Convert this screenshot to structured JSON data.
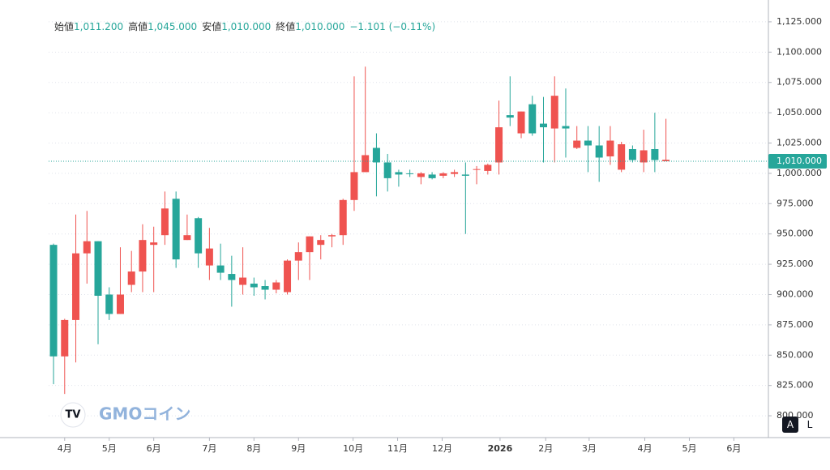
{
  "chart_data": {
    "type": "candlestick",
    "legend": [
      {
        "label": "始値",
        "value": "1,011.200"
      },
      {
        "label": "高値",
        "value": "1,045.000"
      },
      {
        "label": "安値",
        "value": "1,010.000"
      },
      {
        "label": "終値",
        "value": "1,010.000"
      }
    ],
    "change": "−1.101 (−0.11%)",
    "open": [
      849,
      879,
      934,
      944,
      899,
      884,
      900,
      919,
      945,
      943,
      971,
      929,
      949,
      934,
      938,
      918,
      912,
      914,
      906,
      904,
      910,
      928,
      935,
      948,
      945,
      949,
      978,
      1001,
      1015,
      1009,
      996,
      999,
      999.5,
      1000,
      996,
      1000,
      1001,
      998,
      1003.5,
      1007,
      1038,
      1046,
      1051,
      1033,
      1038,
      1064,
      1037,
      1027,
      1023,
      1013,
      1027,
      1024,
      1011,
      1019,
      1011,
      1011.2
    ],
    "high": [
      942,
      880,
      966,
      969,
      944,
      906,
      939,
      936,
      958,
      956,
      985,
      985,
      966,
      964,
      955,
      942,
      932,
      939,
      914,
      912,
      912,
      929,
      943,
      948,
      949,
      950,
      979,
      1080,
      1088,
      1033,
      1016,
      1003,
      1003,
      1001,
      1001,
      1001,
      1003,
      1009,
      1006,
      1008,
      1060,
      1080,
      1051,
      1064,
      1063,
      1080,
      1070,
      1039,
      1039,
      1039,
      1039,
      1026,
      1023,
      1036,
      1050,
      1045
    ],
    "low": [
      826,
      818,
      844,
      909,
      859,
      879,
      884,
      902,
      902,
      902,
      941,
      922,
      945,
      922,
      912,
      912,
      890,
      900,
      899,
      896,
      901,
      900,
      912,
      912,
      929,
      939,
      941,
      969,
      1001,
      981,
      985,
      989,
      997,
      991,
      995,
      996,
      997,
      950,
      991,
      999,
      999,
      1039,
      1029,
      1031,
      1009,
      1009,
      1013,
      1020,
      1001,
      993,
      1007,
      1001,
      1009,
      1001,
      1001,
      1010
    ],
    "close": [
      941,
      849,
      879,
      934,
      944,
      900,
      884,
      908,
      919,
      941,
      949,
      979,
      945,
      963,
      924,
      924,
      917,
      908,
      909,
      907,
      904,
      902,
      928,
      935,
      941,
      948,
      949,
      978,
      1001,
      1021,
      1009,
      1001,
      1000,
      997,
      999,
      998,
      999.5,
      999,
      1003,
      1002,
      1009,
      1048,
      1033,
      1057,
      1041,
      1037,
      1039,
      1021,
      1027,
      1023,
      1014,
      1003,
      1020,
      1009,
      1020,
      1010
    ],
    "up_color": "#26a69a",
    "down_color": "#ef5350",
    "ylim": [
      782,
      1143
    ],
    "xlim": [
      -0.44,
      64.2
    ],
    "yticks": [
      {
        "value": 800,
        "label": "800.000"
      },
      {
        "value": 825,
        "label": "825.000"
      },
      {
        "value": 850,
        "label": "850.000"
      },
      {
        "value": 875,
        "label": "875.000"
      },
      {
        "value": 900,
        "label": "900.000"
      },
      {
        "value": 925,
        "label": "925.000"
      },
      {
        "value": 950,
        "label": "950.000"
      },
      {
        "value": 975,
        "label": "975.000"
      },
      {
        "value": 1000,
        "label": "1,000.000"
      },
      {
        "value": 1025,
        "label": "1,025.000"
      },
      {
        "value": 1050,
        "label": "1,050.000"
      },
      {
        "value": 1075,
        "label": "1,075.000"
      },
      {
        "value": 1100,
        "label": "1,100.000"
      },
      {
        "value": 1125,
        "label": "1,125.000"
      }
    ],
    "xticks": [
      {
        "value": 1,
        "label": "4月"
      },
      {
        "value": 5,
        "label": "5月"
      },
      {
        "value": 9,
        "label": "6月"
      },
      {
        "value": 14,
        "label": "7月"
      },
      {
        "value": 18,
        "label": "8月"
      },
      {
        "value": 22,
        "label": "9月"
      },
      {
        "value": 26.9,
        "label": "10月"
      },
      {
        "value": 30.9,
        "label": "11月"
      },
      {
        "value": 34.9,
        "label": "12月"
      },
      {
        "value": 40.1,
        "label": "2026"
      },
      {
        "value": 44.2,
        "label": "2月"
      },
      {
        "value": 48.1,
        "label": "3月"
      },
      {
        "value": 53.1,
        "label": "4月"
      },
      {
        "value": 57.1,
        "label": "5月"
      },
      {
        "value": 61.1,
        "label": "6月"
      }
    ],
    "price_line": {
      "value": 1010,
      "label": "1,010.000"
    },
    "grid": true,
    "branding": "GMOコイン",
    "scale_buttons": [
      "A",
      "L"
    ]
  }
}
